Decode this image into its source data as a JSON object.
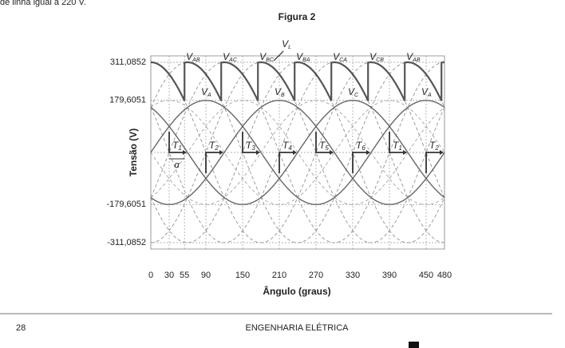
{
  "header": {
    "text": "de linha igual a 220 V."
  },
  "chart_data": {
    "type": "waveform",
    "title": "Figura 2",
    "xlabel": "Ângulo (graus)",
    "ylabel": "Tensão (V)",
    "xlim": [
      0,
      480
    ],
    "xticks": [
      0,
      30,
      55,
      90,
      150,
      210,
      270,
      330,
      390,
      450,
      480
    ],
    "ylim": [
      -311.0852,
      311.0852
    ],
    "yticks": [
      {
        "value": 311.0852,
        "label": "311,0852"
      },
      {
        "value": 179.6051,
        "label": "179,6051"
      },
      {
        "value": -179.6051,
        "label": "-179,6051"
      },
      {
        "value": -311.0852,
        "label": "-311,0852"
      }
    ],
    "grid": true,
    "line_labels": [
      {
        "main": "V",
        "sub": "AB"
      },
      {
        "main": "V",
        "sub": "AC"
      },
      {
        "main": "V",
        "sub": "BC"
      },
      {
        "main": "V",
        "sub": "BA"
      },
      {
        "main": "V",
        "sub": "CA"
      },
      {
        "main": "V",
        "sub": "CB"
      },
      {
        "main": "V",
        "sub": "AB"
      }
    ],
    "phase_labels": [
      {
        "main": "V",
        "sub": "A"
      },
      {
        "main": "V",
        "sub": "B"
      },
      {
        "main": "V",
        "sub": "C"
      },
      {
        "main": "V",
        "sub": "A"
      }
    ],
    "output_label": {
      "main": "V",
      "sub": "L"
    },
    "pulse_labels": [
      {
        "main": "T",
        "sub": "1"
      },
      {
        "main": "T",
        "sub": "2"
      },
      {
        "main": "T",
        "sub": "3"
      },
      {
        "main": "T",
        "sub": "4"
      },
      {
        "main": "T",
        "sub": "5"
      },
      {
        "main": "T",
        "sub": "6"
      },
      {
        "main": "T",
        "sub": "1"
      },
      {
        "main": "T",
        "sub": "2"
      }
    ],
    "alpha_label": "α"
  },
  "footer": {
    "page": "28",
    "section": "ENGENHARIA ELÉTRICA"
  }
}
